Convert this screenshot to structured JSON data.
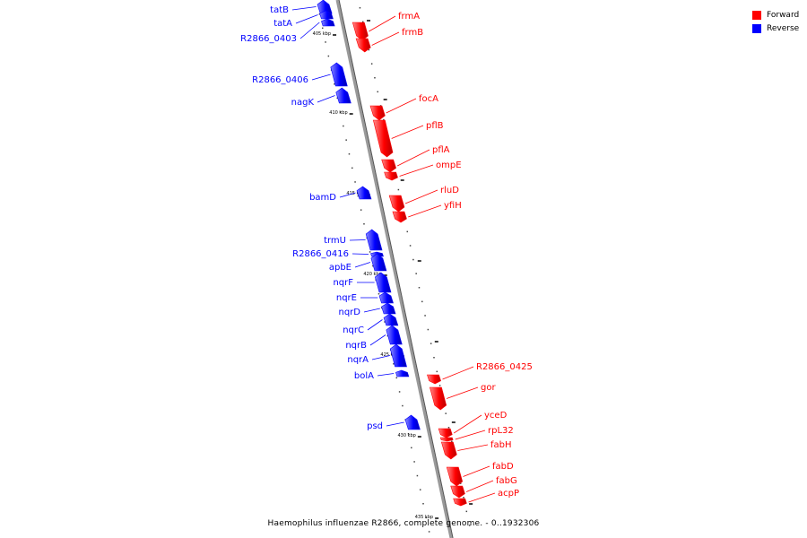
{
  "caption": "Haemophilus influenzae R2866, complete genome. - 0..1932306",
  "legend": {
    "forward_label": "Forward",
    "reverse_label": "Reverse",
    "forward_color": "#ff0000",
    "reverse_color": "#0000ff"
  },
  "colors": {
    "forward": "#ff0000",
    "reverse": "#0000ff",
    "backbone": "#999999"
  },
  "ticks": [
    {
      "label": "405 kbp"
    },
    {
      "label": "410 kbp"
    },
    {
      "label": "415 kbp"
    },
    {
      "label": "420 kbp"
    },
    {
      "label": "425 kbp"
    },
    {
      "label": "430 kbp"
    },
    {
      "label": "435 kbp"
    }
  ],
  "genes": [
    {
      "name": "tatB",
      "strand": "reverse"
    },
    {
      "name": "tatA",
      "strand": "reverse"
    },
    {
      "name": "R2866_0403",
      "strand": "reverse"
    },
    {
      "name": "frmA",
      "strand": "forward"
    },
    {
      "name": "frmB",
      "strand": "forward"
    },
    {
      "name": "R2866_0406",
      "strand": "reverse"
    },
    {
      "name": "nagK",
      "strand": "reverse"
    },
    {
      "name": "focA",
      "strand": "forward"
    },
    {
      "name": "pflB",
      "strand": "forward"
    },
    {
      "name": "pflA",
      "strand": "forward"
    },
    {
      "name": "ompE",
      "strand": "forward"
    },
    {
      "name": "bamD",
      "strand": "reverse"
    },
    {
      "name": "rluD",
      "strand": "forward"
    },
    {
      "name": "yfiH",
      "strand": "forward"
    },
    {
      "name": "trmU",
      "strand": "reverse"
    },
    {
      "name": "R2866_0416",
      "strand": "reverse"
    },
    {
      "name": "apbE",
      "strand": "reverse"
    },
    {
      "name": "nqrF",
      "strand": "reverse"
    },
    {
      "name": "nqrE",
      "strand": "reverse"
    },
    {
      "name": "nqrD",
      "strand": "reverse"
    },
    {
      "name": "nqrC",
      "strand": "reverse"
    },
    {
      "name": "nqrB",
      "strand": "reverse"
    },
    {
      "name": "nqrA",
      "strand": "reverse"
    },
    {
      "name": "bolA",
      "strand": "reverse"
    },
    {
      "name": "R2866_0425",
      "strand": "forward"
    },
    {
      "name": "gor",
      "strand": "forward"
    },
    {
      "name": "psd",
      "strand": "reverse"
    },
    {
      "name": "yceD",
      "strand": "forward"
    },
    {
      "name": "rpL32",
      "strand": "forward"
    },
    {
      "name": "fabH",
      "strand": "forward"
    },
    {
      "name": "fabD",
      "strand": "forward"
    },
    {
      "name": "fabG",
      "strand": "forward"
    },
    {
      "name": "acpP",
      "strand": "forward"
    }
  ]
}
